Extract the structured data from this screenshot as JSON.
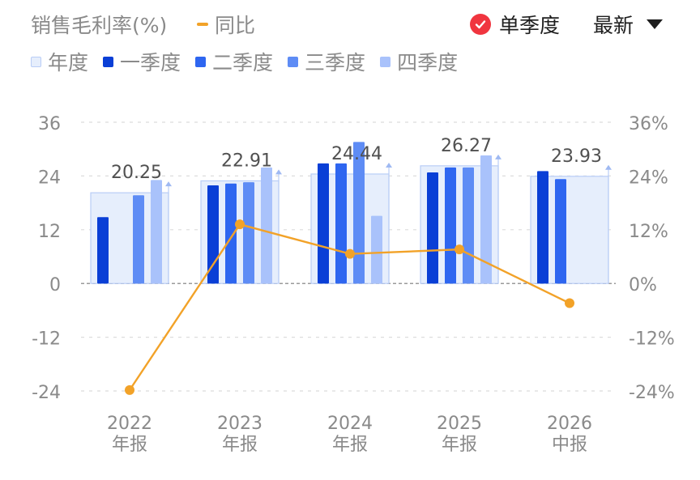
{
  "header": {
    "metric_title": "销售毛利率(%)",
    "yoy_label": "同比",
    "single_quarter_label": "单季度",
    "latest_label": "最新"
  },
  "legend": [
    {
      "label": "年度",
      "color": "#e6eefc"
    },
    {
      "label": "一季度",
      "color": "#0a3fd6"
    },
    {
      "label": "二季度",
      "color": "#2e66f0"
    },
    {
      "label": "三季度",
      "color": "#5e8cf5"
    },
    {
      "label": "四季度",
      "color": "#a9c2fb"
    }
  ],
  "colors": {
    "annual_fill": "#e6eefc",
    "annual_stroke": "#b9cdf6",
    "yoy_line": "#f2a228",
    "axis_text": "#8a8a8a",
    "label_text": "#505050"
  },
  "chart_data": {
    "type": "bar",
    "categories": [
      [
        "2022",
        "年报"
      ],
      [
        "2023",
        "年报"
      ],
      [
        "2024",
        "年报"
      ],
      [
        "2025",
        "年报"
      ],
      [
        "2026",
        "中报"
      ]
    ],
    "series": [
      {
        "name": "年度",
        "values": [
          20.25,
          22.91,
          24.44,
          26.27,
          23.93
        ]
      },
      {
        "name": "一季度",
        "values": [
          14.8,
          21.9,
          26.8,
          24.8,
          25.1
        ]
      },
      {
        "name": "二季度",
        "values": [
          null,
          22.3,
          26.8,
          25.9,
          23.3
        ]
      },
      {
        "name": "三季度",
        "values": [
          19.7,
          22.6,
          31.6,
          25.9,
          null
        ]
      },
      {
        "name": "四季度",
        "values": [
          23.1,
          25.9,
          15.1,
          28.6,
          null
        ]
      },
      {
        "name": "同比",
        "type": "line",
        "axis": "right",
        "values": [
          -23.8,
          13.2,
          6.6,
          7.6,
          -4.4
        ]
      }
    ],
    "data_labels": [
      "20.25",
      "22.91",
      "24.44",
      "26.27",
      "23.93"
    ],
    "y_left": {
      "ticks": [
        36,
        24,
        12,
        0,
        -12,
        -24
      ],
      "tick_labels": [
        "36",
        "24",
        "12",
        "0",
        "-12",
        "-24"
      ],
      "range": [
        -24,
        36
      ]
    },
    "y_right": {
      "ticks": [
        36,
        24,
        12,
        0,
        -12,
        -24
      ],
      "tick_labels": [
        "36%",
        "24%",
        "12%",
        "0%",
        "-12%",
        "-24%"
      ],
      "range": [
        -24,
        36
      ]
    },
    "grid": true
  }
}
